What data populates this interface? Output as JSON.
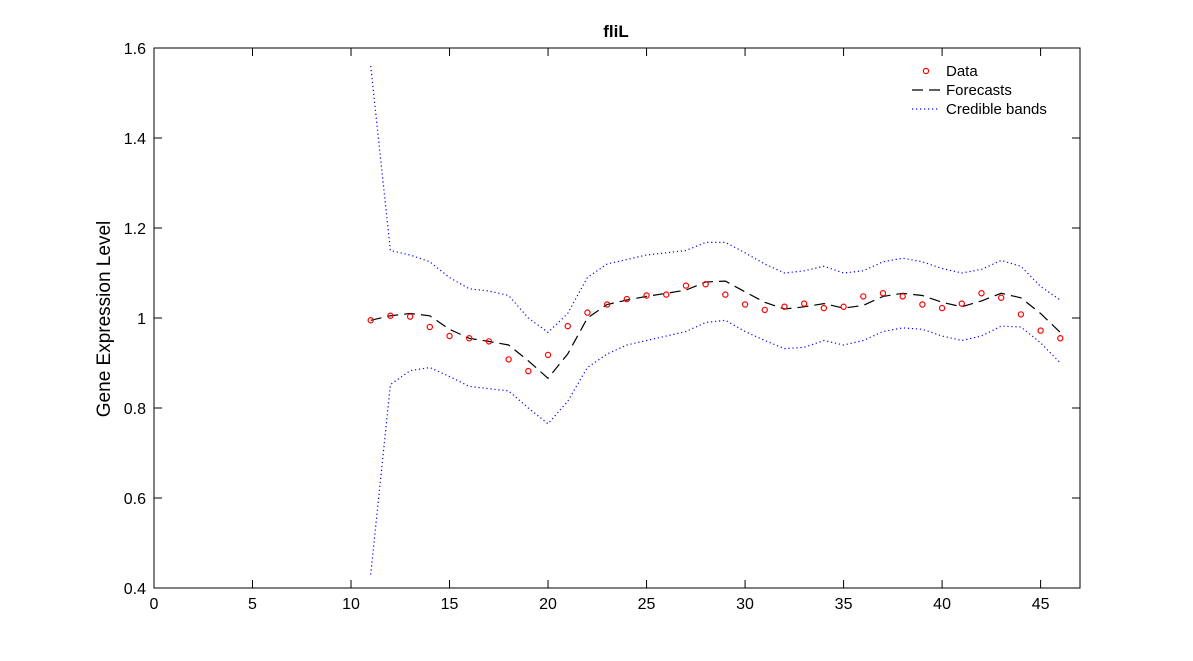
{
  "chart_data": {
    "type": "line",
    "title": "fliL",
    "xlabel": "",
    "ylabel": "Gene Expression Level",
    "xlim": [
      0,
      47
    ],
    "ylim": [
      0.4,
      1.6
    ],
    "xticks": [
      0,
      5,
      10,
      15,
      20,
      25,
      30,
      35,
      40,
      45
    ],
    "xtick_labels": [
      "0",
      "5",
      "10",
      "15",
      "20",
      "25",
      "30",
      "35",
      "40",
      "45"
    ],
    "yticks": [
      0.4,
      0.6,
      0.8,
      1.0,
      1.2,
      1.4,
      1.6
    ],
    "ytick_labels": [
      "0.4",
      "0.6",
      "0.8",
      "1",
      "1.2",
      "1.4",
      "1.6"
    ],
    "grid": false,
    "legend_position": "top-right",
    "series": [
      {
        "name": "Data",
        "style": "markers",
        "color": "#ff0000",
        "x": [
          11,
          12,
          13,
          14,
          15,
          16,
          17,
          18,
          19,
          20,
          21,
          22,
          23,
          24,
          25,
          26,
          27,
          28,
          29,
          30,
          31,
          32,
          33,
          34,
          35,
          36,
          37,
          38,
          39,
          40,
          41,
          42,
          43,
          44,
          45,
          46
        ],
        "y": [
          0.995,
          1.005,
          1.003,
          0.98,
          0.96,
          0.955,
          0.948,
          0.908,
          0.882,
          0.918,
          0.982,
          1.012,
          1.03,
          1.042,
          1.05,
          1.052,
          1.072,
          1.075,
          1.052,
          1.03,
          1.018,
          1.025,
          1.032,
          1.022,
          1.025,
          1.048,
          1.055,
          1.048,
          1.03,
          1.022,
          1.032,
          1.055,
          1.045,
          1.008,
          0.972,
          0.955
        ]
      },
      {
        "name": "Forecasts",
        "style": "dashed",
        "color": "#000000",
        "x": [
          11,
          12,
          13,
          14,
          15,
          16,
          17,
          18,
          19,
          20,
          21,
          22,
          23,
          24,
          25,
          26,
          27,
          28,
          29,
          30,
          31,
          32,
          33,
          34,
          35,
          36,
          37,
          38,
          39,
          40,
          41,
          42,
          43,
          44,
          45,
          46
        ],
        "y": [
          0.995,
          1.005,
          1.01,
          1.005,
          0.975,
          0.955,
          0.948,
          0.94,
          0.905,
          0.866,
          0.92,
          1.0,
          1.03,
          1.04,
          1.048,
          1.055,
          1.062,
          1.08,
          1.082,
          1.058,
          1.035,
          1.02,
          1.025,
          1.032,
          1.022,
          1.028,
          1.048,
          1.055,
          1.05,
          1.035,
          1.025,
          1.038,
          1.055,
          1.045,
          1.01,
          0.968
        ]
      },
      {
        "name": "Credible bands",
        "style": "dotted",
        "color": "#0000ff",
        "x": [
          11,
          12,
          13,
          14,
          15,
          16,
          17,
          18,
          19,
          20,
          21,
          22,
          23,
          24,
          25,
          26,
          27,
          28,
          29,
          30,
          31,
          32,
          33,
          34,
          35,
          36,
          37,
          38,
          39,
          40,
          41,
          42,
          43,
          44,
          45,
          46
        ],
        "y": [
          1.56,
          1.15,
          1.14,
          1.125,
          1.09,
          1.065,
          1.06,
          1.05,
          1.0,
          0.968,
          1.01,
          1.09,
          1.12,
          1.13,
          1.14,
          1.145,
          1.15,
          1.168,
          1.168,
          1.145,
          1.12,
          1.1,
          1.105,
          1.115,
          1.1,
          1.105,
          1.125,
          1.133,
          1.125,
          1.11,
          1.1,
          1.108,
          1.128,
          1.115,
          1.07,
          1.04
        ]
      },
      {
        "name": "",
        "style": "dotted",
        "color": "#0000ff",
        "x": [
          11,
          12,
          13,
          14,
          15,
          16,
          17,
          18,
          19,
          20,
          21,
          22,
          23,
          24,
          25,
          26,
          27,
          28,
          29,
          30,
          31,
          32,
          33,
          34,
          35,
          36,
          37,
          38,
          39,
          40,
          41,
          42,
          43,
          44,
          45,
          46
        ],
        "y": [
          0.43,
          0.852,
          0.883,
          0.89,
          0.87,
          0.848,
          0.843,
          0.838,
          0.8,
          0.765,
          0.815,
          0.89,
          0.92,
          0.94,
          0.95,
          0.96,
          0.97,
          0.99,
          0.995,
          0.97,
          0.95,
          0.932,
          0.935,
          0.95,
          0.94,
          0.95,
          0.97,
          0.978,
          0.975,
          0.96,
          0.95,
          0.96,
          0.982,
          0.98,
          0.945,
          0.9
        ]
      }
    ]
  }
}
